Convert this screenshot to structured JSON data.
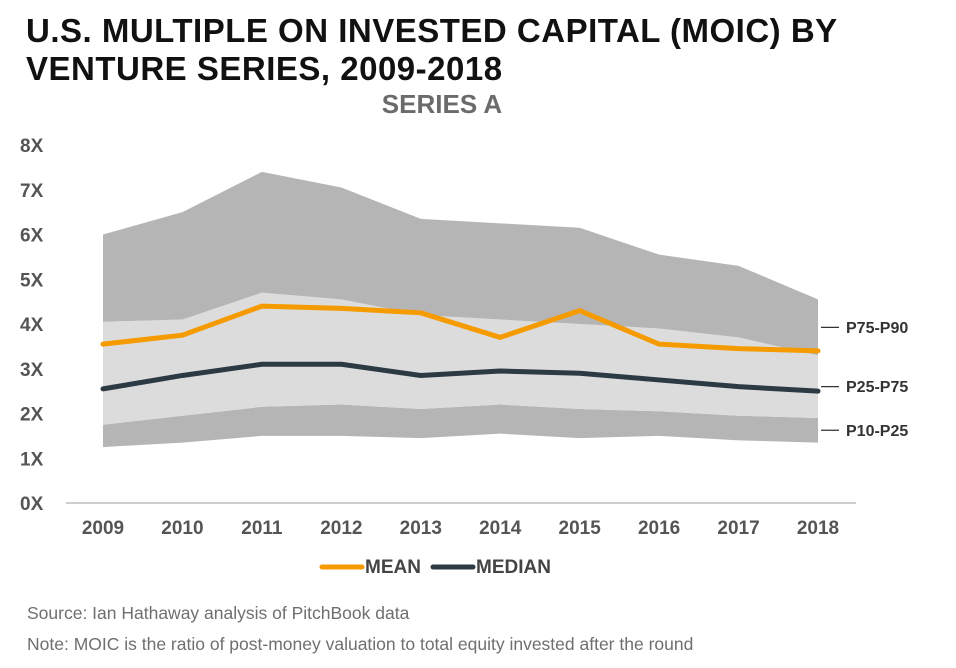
{
  "page": {
    "title_line1": "U.S. MULTIPLE ON INVESTED CAPITAL (MOIC) BY",
    "title_line2": "VENTURE SERIES, 2009-2018",
    "source": "Source: Ian Hathaway analysis of PitchBook data",
    "note": "Note: MOIC is the ratio of post-money valuation to total equity invested after the round"
  },
  "chart_data": {
    "type": "area",
    "subtitle": "SERIES A",
    "x": [
      "2009",
      "2010",
      "2011",
      "2012",
      "2013",
      "2014",
      "2015",
      "2016",
      "2017",
      "2018"
    ],
    "y_ticks": [
      "0X",
      "1X",
      "2X",
      "3X",
      "4X",
      "5X",
      "6X",
      "7X",
      "8X"
    ],
    "ylim": [
      0,
      8
    ],
    "bands": [
      {
        "name": "P10-P25",
        "low": [
          1.25,
          1.35,
          1.5,
          1.5,
          1.45,
          1.55,
          1.45,
          1.5,
          1.4,
          1.35
        ],
        "high": [
          1.75,
          1.95,
          2.15,
          2.2,
          2.1,
          2.2,
          2.1,
          2.05,
          1.95,
          1.9
        ],
        "color": "#b5b5b5"
      },
      {
        "name": "P25-P75",
        "low": [
          1.75,
          1.95,
          2.15,
          2.2,
          2.1,
          2.2,
          2.1,
          2.05,
          1.95,
          1.9
        ],
        "high": [
          4.05,
          4.1,
          4.7,
          4.55,
          4.2,
          4.1,
          4.0,
          3.9,
          3.7,
          3.3
        ],
        "color": "#dcdcdc"
      },
      {
        "name": "P75-P90",
        "low": [
          4.05,
          4.1,
          4.7,
          4.55,
          4.2,
          4.1,
          4.0,
          3.9,
          3.7,
          3.3
        ],
        "high": [
          6.0,
          6.5,
          7.4,
          7.05,
          6.35,
          6.25,
          6.15,
          5.55,
          5.3,
          4.55
        ],
        "color": "#b5b5b5"
      }
    ],
    "series": [
      {
        "name": "MEAN",
        "values": [
          3.55,
          3.75,
          4.4,
          4.35,
          4.25,
          3.7,
          4.3,
          3.55,
          3.45,
          3.4
        ],
        "color": "#f59b00"
      },
      {
        "name": "MEDIAN",
        "values": [
          2.55,
          2.85,
          3.1,
          3.1,
          2.85,
          2.95,
          2.9,
          2.75,
          2.6,
          2.5
        ],
        "color": "#2c3a44"
      }
    ],
    "legend": [
      "MEAN",
      "MEDIAN"
    ],
    "legend_position": "bottom"
  }
}
